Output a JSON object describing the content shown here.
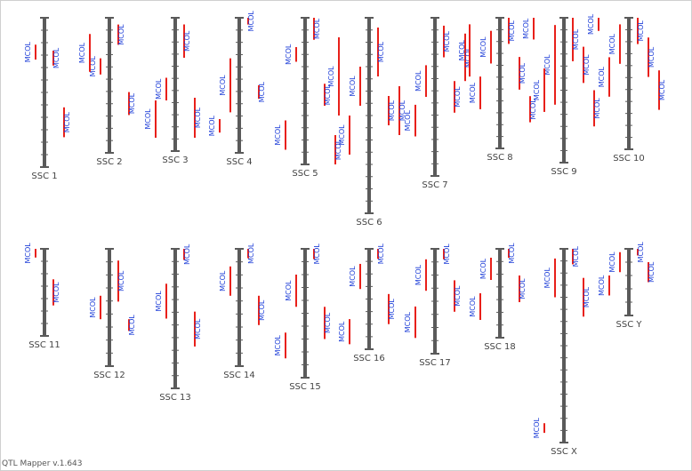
{
  "app": {
    "version_label": "QTL Mapper v.1.643"
  },
  "colors": {
    "chromosome": "#5a5a5a",
    "qtl_bar": "#e8201a",
    "qtl_label": "#1f3fd8",
    "chrom_label": "#444444",
    "border": "#cfcfcf"
  },
  "trait_label": "MCOL",
  "chart_data": {
    "type": "chromosome-qtl-map",
    "chromosomes": [
      {
        "name": "SSC 1",
        "qtl": [
          {
            "start": 0.22,
            "end": 0.32,
            "label": "MCOL"
          },
          {
            "start": 0.18,
            "end": 0.28,
            "label": "MCOL"
          },
          {
            "start": 0.6,
            "end": 0.8,
            "label": "MCOL"
          }
        ]
      },
      {
        "name": "SSC 2",
        "qtl": [
          {
            "start": 0.05,
            "end": 0.2,
            "label": "MCOL"
          },
          {
            "start": 0.3,
            "end": 0.42,
            "label": "MCOL"
          },
          {
            "start": 0.55,
            "end": 0.72,
            "label": "MCOL"
          },
          {
            "start": 0.12,
            "end": 0.4,
            "label": "MCOL"
          }
        ]
      },
      {
        "name": "SSC 3",
        "qtl": [
          {
            "start": 0.05,
            "end": 0.3,
            "label": "MCOL"
          },
          {
            "start": 0.45,
            "end": 0.62,
            "label": "MCOL"
          },
          {
            "start": 0.6,
            "end": 0.9,
            "label": "MCOL"
          },
          {
            "start": 0.62,
            "end": 0.9,
            "label": "MCOL"
          }
        ]
      },
      {
        "name": "SSC 4",
        "qtl": [
          {
            "start": 0.0,
            "end": 0.05,
            "label": "MCOL"
          },
          {
            "start": 0.3,
            "end": 0.7,
            "label": "MCOL"
          },
          {
            "start": 0.5,
            "end": 0.6,
            "label": "MCOL"
          },
          {
            "start": 0.75,
            "end": 0.85,
            "label": "MCOL"
          }
        ]
      },
      {
        "name": "SSC 5",
        "qtl": [
          {
            "start": 0.0,
            "end": 0.15,
            "label": "MCOL"
          },
          {
            "start": 0.2,
            "end": 0.3,
            "label": "MCOL"
          },
          {
            "start": 0.45,
            "end": 0.6,
            "label": "MCOL"
          },
          {
            "start": 0.7,
            "end": 0.9,
            "label": "MCOL"
          },
          {
            "start": 0.8,
            "end": 1.0,
            "label": "MCOL"
          }
        ]
      },
      {
        "name": "SSC 6",
        "qtl": [
          {
            "start": 0.05,
            "end": 0.3,
            "label": "MCOL"
          },
          {
            "start": 0.25,
            "end": 0.45,
            "label": "MCOL"
          },
          {
            "start": 0.4,
            "end": 0.55,
            "label": "MCOL"
          },
          {
            "start": 0.5,
            "end": 0.7,
            "label": "MCOL"
          },
          {
            "start": 0.35,
            "end": 0.6,
            "label": "MCOL"
          },
          {
            "start": 0.1,
            "end": 0.5,
            "label": "MCOL"
          }
        ]
      },
      {
        "name": "SSC 7",
        "qtl": [
          {
            "start": 0.05,
            "end": 0.25,
            "label": "MCOL"
          },
          {
            "start": 0.3,
            "end": 0.5,
            "label": "MCOL"
          },
          {
            "start": 0.4,
            "end": 0.6,
            "label": "MCOL"
          },
          {
            "start": 0.55,
            "end": 0.75,
            "label": "MCOL"
          },
          {
            "start": 0.1,
            "end": 0.4,
            "label": "MCOL"
          }
        ]
      },
      {
        "name": "SSC 8",
        "qtl": [
          {
            "start": 0.0,
            "end": 0.2,
            "label": "MCOL"
          },
          {
            "start": 0.1,
            "end": 0.35,
            "label": "MCOL"
          },
          {
            "start": 0.3,
            "end": 0.55,
            "label": "MCOL"
          },
          {
            "start": 0.45,
            "end": 0.7,
            "label": "MCOL"
          },
          {
            "start": 0.6,
            "end": 0.8,
            "label": "MCOL"
          },
          {
            "start": 0.05,
            "end": 0.45,
            "label": "MCOL"
          }
        ]
      },
      {
        "name": "SSC 9",
        "qtl": [
          {
            "start": 0.0,
            "end": 0.3,
            "label": "MCOL"
          },
          {
            "start": 0.05,
            "end": 0.6,
            "label": "MCOL"
          },
          {
            "start": 0.2,
            "end": 0.45,
            "label": "MCOL"
          },
          {
            "start": 0.35,
            "end": 0.65,
            "label": "MCOL"
          },
          {
            "start": 0.5,
            "end": 0.75,
            "label": "MCOL"
          },
          {
            "start": 0.0,
            "end": 0.15,
            "label": "MCOL"
          }
        ]
      },
      {
        "name": "SSC 10",
        "qtl": [
          {
            "start": 0.0,
            "end": 0.2,
            "label": "MCOL"
          },
          {
            "start": 0.05,
            "end": 0.35,
            "label": "MCOL"
          },
          {
            "start": 0.15,
            "end": 0.45,
            "label": "MCOL"
          },
          {
            "start": 0.3,
            "end": 0.6,
            "label": "MCOL"
          },
          {
            "start": 0.4,
            "end": 0.7,
            "label": "MCOL"
          },
          {
            "start": 0.0,
            "end": 0.1,
            "label": "MCOL"
          }
        ]
      },
      {
        "name": "SSC 11",
        "qtl": [
          {
            "start": 0.35,
            "end": 0.65,
            "label": "MCOL"
          },
          {
            "start": 0.0,
            "end": 0.1,
            "label": "MCOL"
          }
        ]
      },
      {
        "name": "SSC 12",
        "qtl": [
          {
            "start": 0.1,
            "end": 0.45,
            "label": "MCOL"
          },
          {
            "start": 0.4,
            "end": 0.6,
            "label": "MCOL"
          },
          {
            "start": 0.6,
            "end": 0.7,
            "label": "MCOL"
          }
        ]
      },
      {
        "name": "SSC 13",
        "qtl": [
          {
            "start": 0.0,
            "end": 0.08,
            "label": "MCOL"
          },
          {
            "start": 0.25,
            "end": 0.5,
            "label": "MCOL"
          },
          {
            "start": 0.45,
            "end": 0.7,
            "label": "MCOL"
          }
        ]
      },
      {
        "name": "SSC 14",
        "qtl": [
          {
            "start": 0.0,
            "end": 0.08,
            "label": "MCOL"
          },
          {
            "start": 0.15,
            "end": 0.4,
            "label": "MCOL"
          },
          {
            "start": 0.4,
            "end": 0.65,
            "label": "MCOL"
          }
        ]
      },
      {
        "name": "SSC 15",
        "qtl": [
          {
            "start": 0.0,
            "end": 0.08,
            "label": "MCOL"
          },
          {
            "start": 0.2,
            "end": 0.45,
            "label": "MCOL"
          },
          {
            "start": 0.45,
            "end": 0.7,
            "label": "MCOL"
          },
          {
            "start": 0.65,
            "end": 0.85,
            "label": "MCOL"
          }
        ]
      },
      {
        "name": "SSC 16",
        "qtl": [
          {
            "start": 0.0,
            "end": 0.1,
            "label": "MCOL"
          },
          {
            "start": 0.15,
            "end": 0.4,
            "label": "MCOL"
          },
          {
            "start": 0.45,
            "end": 0.75,
            "label": "MCOL"
          },
          {
            "start": 0.7,
            "end": 0.95,
            "label": "MCOL"
          }
        ]
      },
      {
        "name": "SSC 17",
        "qtl": [
          {
            "start": 0.0,
            "end": 0.1,
            "label": "MCOL"
          },
          {
            "start": 0.1,
            "end": 0.4,
            "label": "MCOL"
          },
          {
            "start": 0.3,
            "end": 0.6,
            "label": "MCOL"
          },
          {
            "start": 0.55,
            "end": 0.85,
            "label": "MCOL"
          }
        ]
      },
      {
        "name": "SSC 18",
        "qtl": [
          {
            "start": 0.0,
            "end": 0.1,
            "label": "MCOL"
          },
          {
            "start": 0.1,
            "end": 0.35,
            "label": "MCOL"
          },
          {
            "start": 0.3,
            "end": 0.6,
            "label": "MCOL"
          },
          {
            "start": 0.5,
            "end": 0.8,
            "label": "MCOL"
          }
        ]
      },
      {
        "name": "SSC X",
        "qtl": [
          {
            "start": 0.0,
            "end": 0.08,
            "label": "MCOL"
          },
          {
            "start": 0.05,
            "end": 0.25,
            "label": "MCOL"
          },
          {
            "start": 0.15,
            "end": 0.35,
            "label": "MCOL"
          },
          {
            "start": 0.9,
            "end": 0.95,
            "label": "MCOL"
          }
        ]
      },
      {
        "name": "SSC Y",
        "qtl": [
          {
            "start": 0.0,
            "end": 0.1,
            "label": "MCOL"
          },
          {
            "start": 0.05,
            "end": 0.35,
            "label": "MCOL"
          },
          {
            "start": 0.2,
            "end": 0.5,
            "label": "MCOL"
          },
          {
            "start": 0.4,
            "end": 0.7,
            "label": "MCOL"
          }
        ]
      }
    ]
  }
}
